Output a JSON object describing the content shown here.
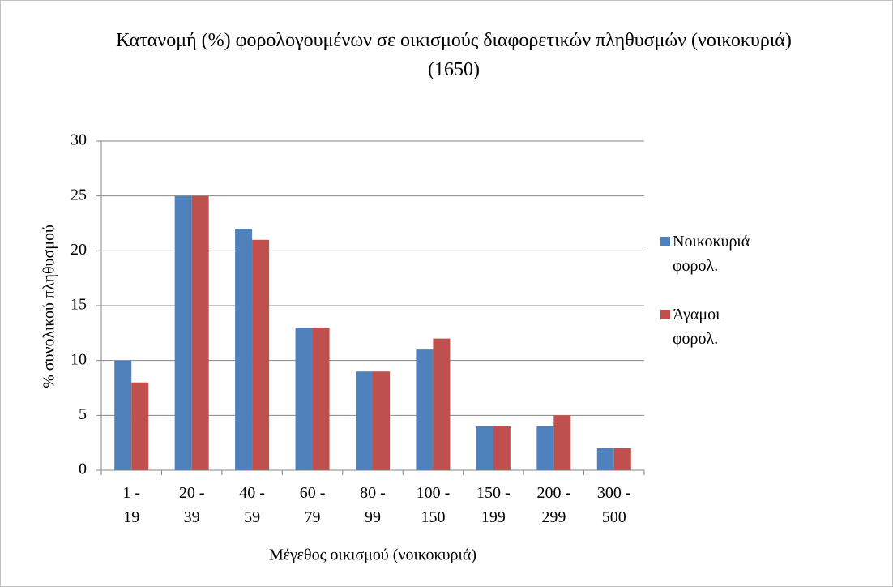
{
  "chart_data": {
    "type": "bar",
    "title": "Κατανομή (%) φορολογουμένων σε οικισμούς διαφορετικών πληθυσμών (νοικοκυριά) (1650)",
    "x_label": "Μέγεθος οικισμού (νοικοκυριά)",
    "y_label": "% συνολικού πληθυσμού",
    "categories": [
      "1 - 19",
      "20 - 39",
      "40 - 59",
      "60 - 79",
      "80 - 99",
      "100 - 150",
      "150 - 199",
      "200 - 299",
      "300 - 500"
    ],
    "series": [
      {
        "name": "Νοικοκυριά φορολ.",
        "color": "#4f81bd",
        "values": [
          10,
          25,
          22,
          13,
          9,
          11,
          4,
          4,
          2
        ]
      },
      {
        "name": "Άγαμοι φορολ.",
        "color": "#c0504d",
        "values": [
          8,
          25,
          21,
          13,
          9,
          12,
          4,
          5,
          2
        ]
      }
    ],
    "ylim": [
      0,
      30
    ],
    "yticks": [
      0,
      5,
      10,
      15,
      20,
      25,
      30
    ],
    "grid": true,
    "legend": "right"
  }
}
